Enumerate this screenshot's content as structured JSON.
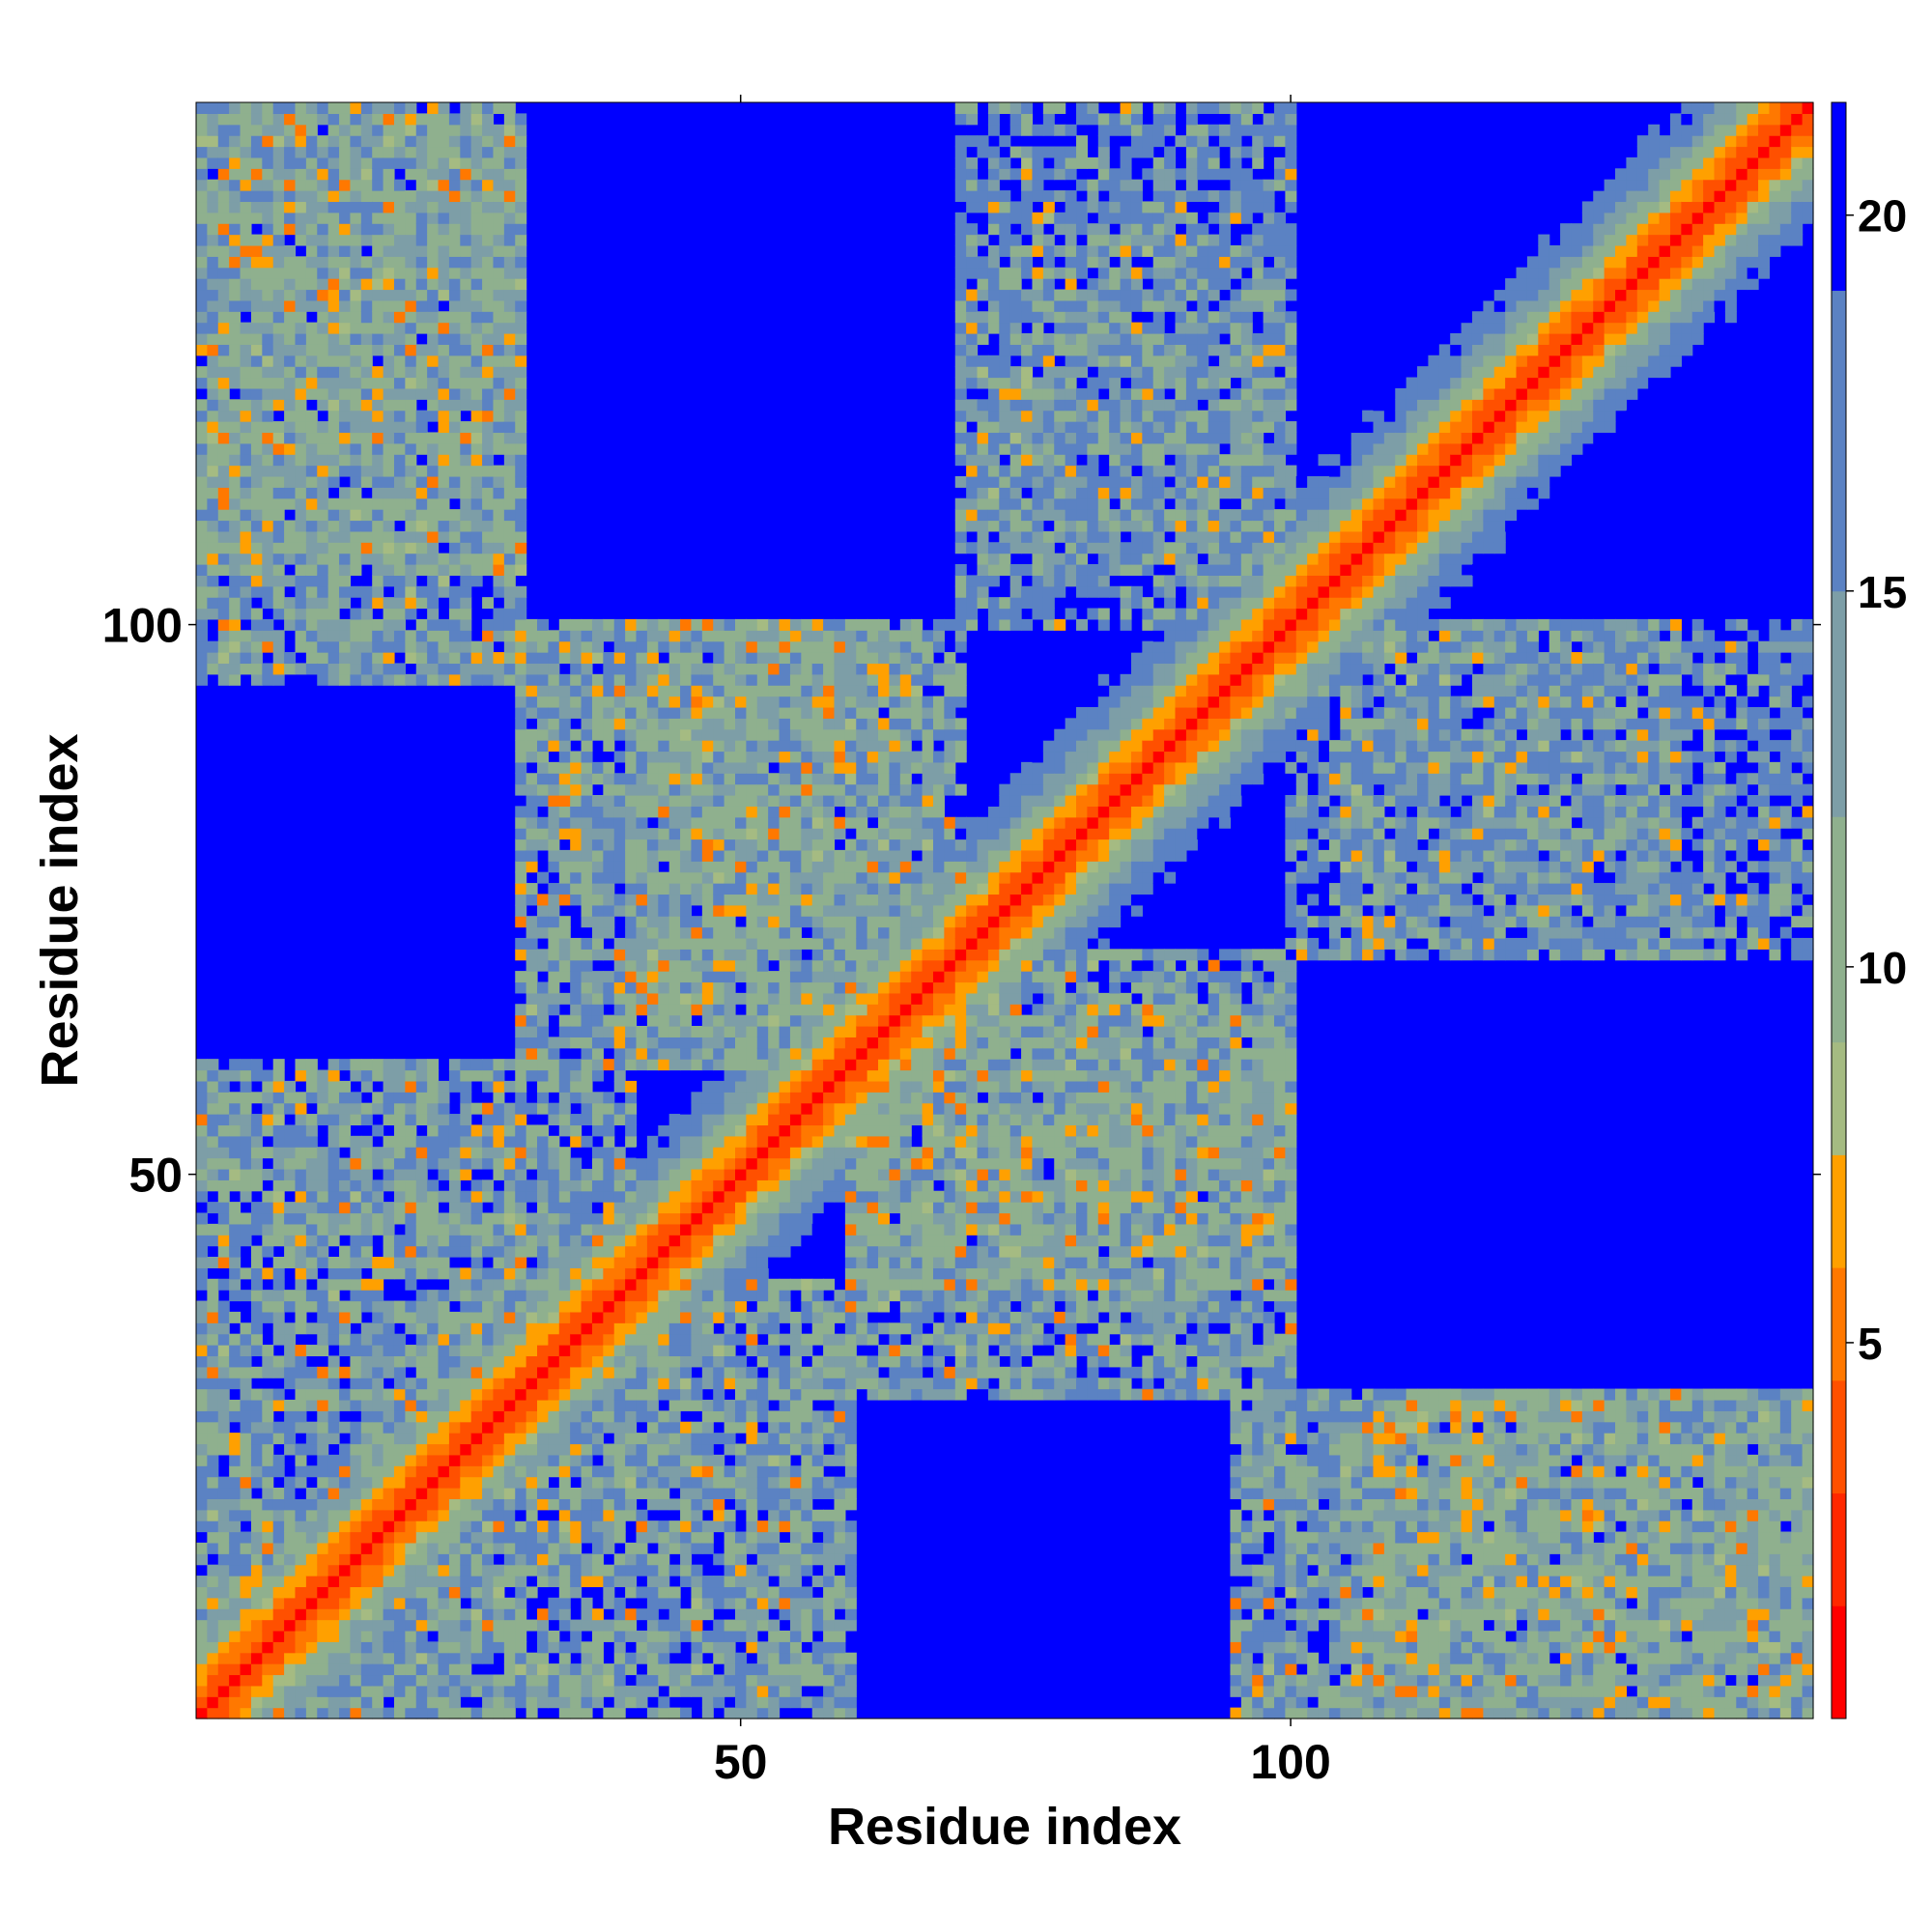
{
  "chart_data": {
    "type": "heatmap",
    "title": "",
    "xlabel": "Residue index",
    "ylabel": "Residue index",
    "n_residues": 147,
    "xlim": [
      1,
      147
    ],
    "ylim": [
      1,
      147
    ],
    "x_ticks": [
      50,
      100
    ],
    "x_tick_labels": [
      "50",
      "100"
    ],
    "y_ticks": [
      50,
      100
    ],
    "y_tick_labels": [
      "50",
      "100"
    ],
    "colorbar": {
      "range": [
        0,
        21.5
      ],
      "ticks": [
        5,
        10,
        15,
        20
      ],
      "tick_labels": [
        "5",
        "10",
        "15",
        "20"
      ],
      "bins": [
        {
          "max": 1.5,
          "color": "#ff0000"
        },
        {
          "max": 3.0,
          "color": "#ff2800"
        },
        {
          "max": 4.5,
          "color": "#ff5000"
        },
        {
          "max": 6.0,
          "color": "#ff7800"
        },
        {
          "max": 7.5,
          "color": "#ffa000"
        },
        {
          "max": 9.0,
          "color": "#a5bb82"
        },
        {
          "max": 12.0,
          "color": "#8fb08e"
        },
        {
          "max": 15.0,
          "color": "#7d9ea7"
        },
        {
          "max": 19.0,
          "color": "#5b82c3"
        },
        {
          "max": 21.5,
          "color": "#0000ff"
        }
      ]
    },
    "grid": false,
    "legend": "colorbar-right",
    "description_of_values": "pairwise residue distance; red = close contacts along diagonal, blue = distant (>=20)",
    "contact_regions": [
      {
        "x": [
          1,
          30
        ],
        "y": [
          105,
          147
        ],
        "level": "medium"
      },
      {
        "x": [
          1,
          60
        ],
        "y": [
          1,
          40
        ],
        "level": "medium"
      },
      {
        "x": [
          40,
          70
        ],
        "y": [
          60,
          100
        ],
        "level": "medium"
      },
      {
        "x": [
          60,
          100
        ],
        "y": [
          30,
          65
        ],
        "level": "medium"
      },
      {
        "x": [
          95,
          147
        ],
        "y": [
          1,
          30
        ],
        "level": "medium"
      },
      {
        "x": [
          70,
          100
        ],
        "y": [
          100,
          147
        ],
        "level": "low"
      },
      {
        "x": [
          105,
          135
        ],
        "y": [
          70,
          100
        ],
        "level": "low"
      }
    ]
  }
}
